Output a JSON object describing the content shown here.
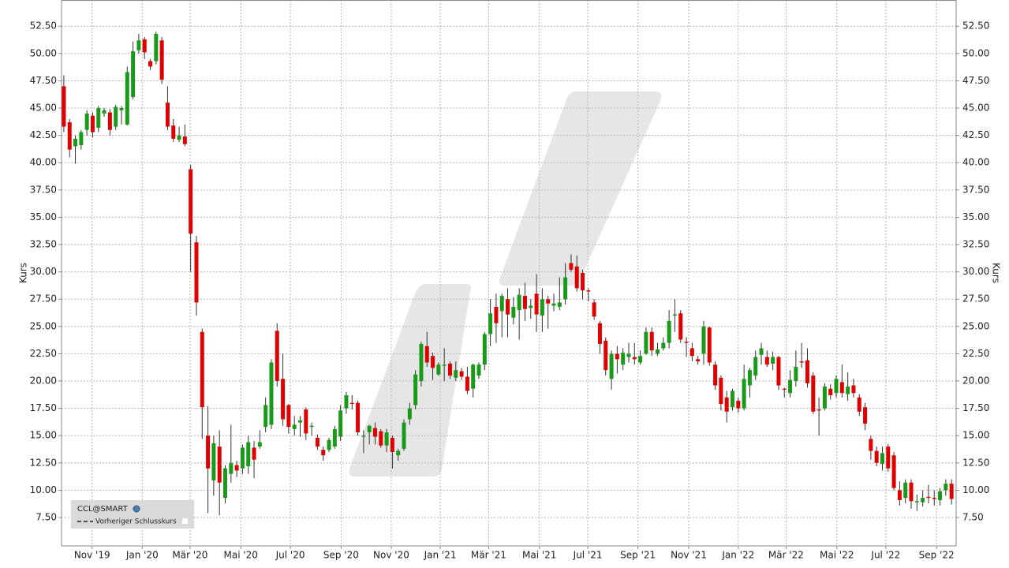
{
  "chart_data": {
    "type": "candlestick",
    "y_label": "Kurs",
    "up_color": "#1a9a1a",
    "down_color": "#e00000",
    "wick_color": "#333333",
    "grid": true,
    "legend": {
      "series": "CCL@SMART",
      "previous_close": "Vorheriger Schlusskurs"
    },
    "xlim": [
      -0.4,
      154.8
    ],
    "xticks": [
      {
        "value": 4.9,
        "label": "Nov '19"
      },
      {
        "value": 13.6,
        "label": "Jan '20"
      },
      {
        "value": 21.9,
        "label": "Mär '20"
      },
      {
        "value": 30.7,
        "label": "Mai '20"
      },
      {
        "value": 39.3,
        "label": "Jul '20"
      },
      {
        "value": 48.1,
        "label": "Sep '20"
      },
      {
        "value": 56.8,
        "label": "Nov '20"
      },
      {
        "value": 65.3,
        "label": "Jan '21"
      },
      {
        "value": 73.7,
        "label": "Mär '21"
      },
      {
        "value": 82.5,
        "label": "Mai '21"
      },
      {
        "value": 90.9,
        "label": "Jul '21"
      },
      {
        "value": 99.6,
        "label": "Sep '21"
      },
      {
        "value": 108.4,
        "label": "Nov '21"
      },
      {
        "value": 117.0,
        "label": "Jan '22"
      },
      {
        "value": 125.3,
        "label": "Mär '22"
      },
      {
        "value": 134.1,
        "label": "Mai '22"
      },
      {
        "value": 142.6,
        "label": "Jul '22"
      },
      {
        "value": 151.4,
        "label": "Sep '22"
      }
    ],
    "ylim": [
      4.9,
      54.9
    ],
    "yticks": [
      {
        "value": 7.5,
        "label": "7.50"
      },
      {
        "value": 10,
        "label": "10.00"
      },
      {
        "value": 12.5,
        "label": "12.50"
      },
      {
        "value": 15,
        "label": "15.00"
      },
      {
        "value": 17.5,
        "label": "17.50"
      },
      {
        "value": 20,
        "label": "20.00"
      },
      {
        "value": 22.5,
        "label": "22.50"
      },
      {
        "value": 25,
        "label": "25.00"
      },
      {
        "value": 27.5,
        "label": "27.50"
      },
      {
        "value": 30,
        "label": "30.00"
      },
      {
        "value": 32.5,
        "label": "32.50"
      },
      {
        "value": 35,
        "label": "35.00"
      },
      {
        "value": 37.5,
        "label": "37.50"
      },
      {
        "value": 40,
        "label": "40.00"
      },
      {
        "value": 42.5,
        "label": "42.50"
      },
      {
        "value": 45,
        "label": "45.00"
      },
      {
        "value": 47.5,
        "label": "47.50"
      },
      {
        "value": 50,
        "label": "50.00"
      },
      {
        "value": 52.5,
        "label": "52.50"
      }
    ],
    "open": [
      47,
      43.7,
      41.5,
      41.6,
      43,
      44.3,
      43.2,
      44.5,
      44.6,
      43.3,
      44.8,
      43.5,
      46,
      50.3,
      51.3,
      49.3,
      49.3,
      51.2,
      45.5,
      43.4,
      42.1,
      42.4,
      39.4,
      32.7,
      24.5,
      15,
      10.9,
      14,
      9.3,
      11.5,
      12.3,
      12,
      12.2,
      13.9,
      14,
      15.8,
      16,
      24.6,
      20.2,
      17.8,
      15.6,
      16.2,
      17.4,
      15.8,
      14.8,
      13.7,
      13.7,
      14,
      14.9,
      17.5,
      18,
      18,
      14.9,
      15.3,
      15.7,
      15.4,
      14.1,
      14.8,
      13.2,
      13.8,
      16.5,
      17.8,
      20,
      23.2,
      22.3,
      20.6,
      21.4,
      21.6,
      20.3,
      20.9,
      20.4,
      19.3,
      20.5,
      21.5,
      24.3,
      26.8,
      26.4,
      27.5,
      25.8,
      26.5,
      27.8,
      26.7,
      28,
      26,
      27.5,
      26.9,
      26.8,
      27.5,
      30.8,
      30.5,
      29.9,
      28.3,
      27.2,
      25.3,
      23.7,
      20.2,
      22.5,
      21.5,
      22.2,
      22.2,
      21.7,
      22.5,
      24.5,
      22.5,
      23,
      23.5,
      26,
      26.2,
      23.6,
      23,
      22,
      22.5,
      24.9,
      21.5,
      20.3,
      18.5,
      17.6,
      18.2,
      17.5,
      19.6,
      20.5,
      22.4,
      22.2,
      21.6,
      22.2,
      19.3,
      18.9,
      20,
      21.8,
      21.9,
      20.5,
      17.4,
      17.5,
      19.3,
      18.9,
      19.9,
      18.8,
      19.6,
      18.5,
      17.6,
      14.7,
      13.6,
      12.4,
      14,
      13.2,
      10,
      9.3,
      10.7,
      8.9,
      8.9,
      9.4,
      9.3,
      9.1,
      10,
      10.6
    ],
    "high": [
      48,
      44,
      42.5,
      43,
      44.8,
      44.6,
      45.2,
      45,
      44.9,
      45.3,
      45.2,
      48.8,
      51.1,
      51.8,
      51.5,
      49.5,
      52,
      51.5,
      47,
      44,
      43.3,
      43.5,
      39.8,
      33.3,
      24.8,
      17.7,
      15,
      15.5,
      12.3,
      16,
      12.7,
      14.2,
      15,
      14.5,
      15.5,
      18.5,
      22,
      25.3,
      22.5,
      17.9,
      16.8,
      16.8,
      17.6,
      16.2,
      15.1,
      14,
      14.8,
      15.9,
      17.8,
      19,
      18.7,
      18.2,
      15.5,
      16,
      16.2,
      15.6,
      15.6,
      15,
      13.8,
      16.5,
      18,
      21,
      23.6,
      24.5,
      22.6,
      21.7,
      23,
      21.8,
      21.8,
      21.2,
      21.3,
      21.6,
      21.7,
      24.5,
      27.5,
      28,
      28,
      28.5,
      27.7,
      28.5,
      29,
      27.5,
      29.8,
      28.5,
      27.8,
      28,
      29.5,
      30.8,
      31.6,
      31.5,
      30.2,
      28.5,
      27.5,
      25.5,
      24,
      22.8,
      23.2,
      23,
      23.5,
      23.5,
      22.8,
      24.9,
      24.9,
      23.5,
      24,
      26.5,
      27.5,
      26.5,
      24,
      23.5,
      22.3,
      25.5,
      25,
      21.8,
      20.5,
      19.1,
      19.3,
      18.5,
      21.5,
      21.2,
      22.8,
      23.5,
      22.8,
      22.7,
      22.3,
      19.4,
      21,
      22.8,
      23.5,
      23,
      20.8,
      18.5,
      19.8,
      19.7,
      20.5,
      21.5,
      20.8,
      20.2,
      18.8,
      18,
      15,
      14,
      14,
      14.2,
      13.5,
      10.8,
      11,
      11,
      9.6,
      10,
      10.5,
      10,
      10.2,
      11,
      11
    ],
    "low": [
      42.8,
      40.5,
      39.9,
      41.2,
      42.5,
      42.3,
      42.8,
      44.2,
      42.5,
      43,
      43.5,
      43.4,
      45.8,
      50,
      49.5,
      48.5,
      49,
      47.2,
      43,
      41.9,
      41.9,
      41.5,
      30,
      26,
      14.7,
      7.9,
      9.5,
      7.7,
      8.8,
      10.7,
      11.2,
      11.5,
      11.5,
      11.1,
      13.8,
      15.3,
      15.6,
      19.5,
      15.9,
      15.2,
      15,
      14.9,
      14.6,
      15,
      13.7,
      12.7,
      13.5,
      13.8,
      14.5,
      17,
      17.4,
      15,
      13.4,
      14.2,
      14.2,
      13.9,
      13.5,
      12,
      12.7,
      13.6,
      16,
      17.4,
      19.5,
      21.3,
      20.1,
      20.5,
      20,
      20.2,
      20,
      20.1,
      18.8,
      18.5,
      20.2,
      21,
      23.2,
      23.5,
      24,
      24,
      25.2,
      23.8,
      25.5,
      25.7,
      24.5,
      24.5,
      24.8,
      26.4,
      26.5,
      27,
      30,
      28.2,
      27.5,
      27.3,
      25.6,
      22.5,
      20.5,
      19.2,
      20.7,
      21,
      21.7,
      21.5,
      21.5,
      22.4,
      22.3,
      22.3,
      22.8,
      23,
      24.5,
      23.5,
      22.2,
      21.8,
      21.5,
      21.5,
      21.4,
      19.2,
      17.3,
      16.2,
      17.3,
      17.1,
      17.3,
      18.5,
      20.1,
      21.5,
      21.3,
      21,
      19.2,
      18.5,
      18.5,
      19.5,
      21.2,
      19.4,
      17,
      15,
      17.3,
      18.3,
      18.5,
      18.5,
      18.2,
      18.5,
      16.8,
      15.5,
      12.8,
      12.2,
      11.8,
      11.7,
      10,
      8.6,
      8.8,
      8.3,
      8.1,
      8.5,
      8.8,
      8.6,
      8.6,
      9.5,
      8.7
    ],
    "close": [
      43.3,
      41.2,
      42.2,
      42.8,
      44.5,
      42.8,
      45,
      44.8,
      43,
      45.1,
      45,
      48.3,
      50.2,
      51.2,
      50.1,
      48.8,
      51.8,
      47.6,
      43.3,
      42.2,
      42.5,
      41.7,
      33.5,
      27.2,
      17.6,
      12,
      14.3,
      10.7,
      12,
      12.5,
      11.8,
      13.9,
      14.4,
      12.8,
      14.4,
      17.8,
      21.7,
      20,
      16.5,
      15.8,
      16,
      16.4,
      15.2,
      15.9,
      14,
      13.2,
      14.6,
      15.6,
      17.3,
      18.7,
      17.9,
      15.3,
      15,
      15.9,
      14.9,
      14.1,
      15.3,
      13.5,
      13.6,
      16.2,
      17.5,
      20.6,
      23.4,
      21.7,
      21.2,
      21.5,
      21.5,
      20.5,
      21,
      20.4,
      19.1,
      21.5,
      21.5,
      24.3,
      26.2,
      25.3,
      27.8,
      26.1,
      26.8,
      27.9,
      26.6,
      26.9,
      26.1,
      27.5,
      27.1,
      27.1,
      27.2,
      29.5,
      30.2,
      28.5,
      28.3,
      28.2,
      25.9,
      23.4,
      21,
      22.5,
      22,
      22.6,
      22.5,
      22,
      22.3,
      24.5,
      22.8,
      22.9,
      23.5,
      25.5,
      26.1,
      23.8,
      23.5,
      22.3,
      21.8,
      25,
      21.7,
      19.6,
      17.9,
      17.2,
      19.1,
      17.5,
      20.2,
      21,
      22.2,
      23,
      21.5,
      22.2,
      19.6,
      19.2,
      20.1,
      21.3,
      21.7,
      19.8,
      17.2,
      17.3,
      19.5,
      18.7,
      20.2,
      18.9,
      19.5,
      18.9,
      17.2,
      16.1,
      13.6,
      12.5,
      13.4,
      12,
      10.2,
      9.1,
      10.7,
      9,
      9,
      9.3,
      9.3,
      9.2,
      9.9,
      10.6,
      9.2
    ]
  }
}
